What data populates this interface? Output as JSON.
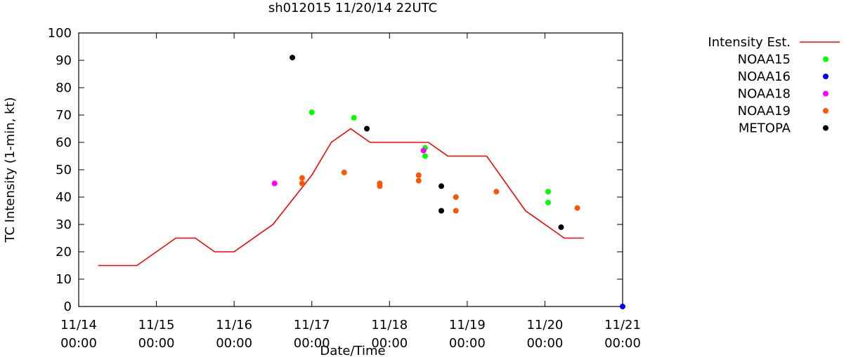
{
  "chart_data": {
    "type": "scatter",
    "title": "sh012015 11/20/14 22UTC",
    "xlabel": "Date/Time",
    "ylabel": "TC Intensity (1-min, kt)",
    "ylim": [
      0,
      100
    ],
    "xlim": [
      "2014-11-14 00:00",
      "2014-11-21 00:00"
    ],
    "x_ticks": [
      {
        "date": "2014-11-14 00:00",
        "label1": "11/14",
        "label2": "00:00"
      },
      {
        "date": "2014-11-15 00:00",
        "label1": "11/15",
        "label2": "00:00"
      },
      {
        "date": "2014-11-16 00:00",
        "label1": "11/16",
        "label2": "00:00"
      },
      {
        "date": "2014-11-17 00:00",
        "label1": "11/17",
        "label2": "00:00"
      },
      {
        "date": "2014-11-18 00:00",
        "label1": "11/18",
        "label2": "00:00"
      },
      {
        "date": "2014-11-19 00:00",
        "label1": "11/19",
        "label2": "00:00"
      },
      {
        "date": "2014-11-20 00:00",
        "label1": "11/20",
        "label2": "00:00"
      },
      {
        "date": "2014-11-21 00:00",
        "label1": "11/21",
        "label2": "00:00"
      }
    ],
    "y_ticks": [
      0,
      10,
      20,
      30,
      40,
      50,
      60,
      70,
      80,
      90,
      100
    ],
    "grid": false,
    "legend_position": "right",
    "series": [
      {
        "name": "Intensity Est.",
        "kind": "line",
        "color": "#ff0000",
        "points": [
          {
            "x": "2014-11-14 06:00",
            "y": 15
          },
          {
            "x": "2014-11-14 18:00",
            "y": 15
          },
          {
            "x": "2014-11-15 06:00",
            "y": 25
          },
          {
            "x": "2014-11-15 12:00",
            "y": 25
          },
          {
            "x": "2014-11-15 18:00",
            "y": 20
          },
          {
            "x": "2014-11-16 00:00",
            "y": 20
          },
          {
            "x": "2014-11-16 12:00",
            "y": 30
          },
          {
            "x": "2014-11-17 00:00",
            "y": 48
          },
          {
            "x": "2014-11-17 06:00",
            "y": 60
          },
          {
            "x": "2014-11-17 12:00",
            "y": 65
          },
          {
            "x": "2014-11-17 18:00",
            "y": 60
          },
          {
            "x": "2014-11-18 12:00",
            "y": 60
          },
          {
            "x": "2014-11-18 18:00",
            "y": 55
          },
          {
            "x": "2014-11-19 06:00",
            "y": 55
          },
          {
            "x": "2014-11-19 18:00",
            "y": 35
          },
          {
            "x": "2014-11-20 06:00",
            "y": 25
          },
          {
            "x": "2014-11-20 12:00",
            "y": 25
          }
        ]
      },
      {
        "name": "NOAA15",
        "kind": "points",
        "color": "#00ff00",
        "points": [
          {
            "x": "2014-11-17 00:00",
            "y": 71
          },
          {
            "x": "2014-11-17 13:00",
            "y": 69
          },
          {
            "x": "2014-11-18 11:00",
            "y": 58
          },
          {
            "x": "2014-11-18 11:00",
            "y": 55
          },
          {
            "x": "2014-11-20 01:00",
            "y": 42
          },
          {
            "x": "2014-11-20 01:00",
            "y": 38
          }
        ]
      },
      {
        "name": "NOAA16",
        "kind": "points",
        "color": "#0000ff",
        "points": [
          {
            "x": "2014-11-21 00:00",
            "y": 0
          }
        ]
      },
      {
        "name": "NOAA18",
        "kind": "points",
        "color": "#ff00ff",
        "points": [
          {
            "x": "2014-11-16 12:30",
            "y": 45
          },
          {
            "x": "2014-11-18 10:30",
            "y": 57
          }
        ]
      },
      {
        "name": "NOAA19",
        "kind": "points",
        "color": "#ff5500",
        "points": [
          {
            "x": "2014-11-16 21:00",
            "y": 47
          },
          {
            "x": "2014-11-16 21:00",
            "y": 45
          },
          {
            "x": "2014-11-17 10:00",
            "y": 49
          },
          {
            "x": "2014-11-17 21:00",
            "y": 45
          },
          {
            "x": "2014-11-17 21:00",
            "y": 44
          },
          {
            "x": "2014-11-18 09:00",
            "y": 48
          },
          {
            "x": "2014-11-18 09:00",
            "y": 46
          },
          {
            "x": "2014-11-18 20:30",
            "y": 40
          },
          {
            "x": "2014-11-18 20:30",
            "y": 35
          },
          {
            "x": "2014-11-19 09:00",
            "y": 42
          },
          {
            "x": "2014-11-20 10:00",
            "y": 36
          }
        ]
      },
      {
        "name": "METOPA",
        "kind": "points",
        "color": "#000000",
        "points": [
          {
            "x": "2014-11-16 18:00",
            "y": 91
          },
          {
            "x": "2014-11-17 17:00",
            "y": 65
          },
          {
            "x": "2014-11-18 16:00",
            "y": 44
          },
          {
            "x": "2014-11-18 16:00",
            "y": 35
          },
          {
            "x": "2014-11-20 05:00",
            "y": 29
          }
        ]
      }
    ]
  }
}
